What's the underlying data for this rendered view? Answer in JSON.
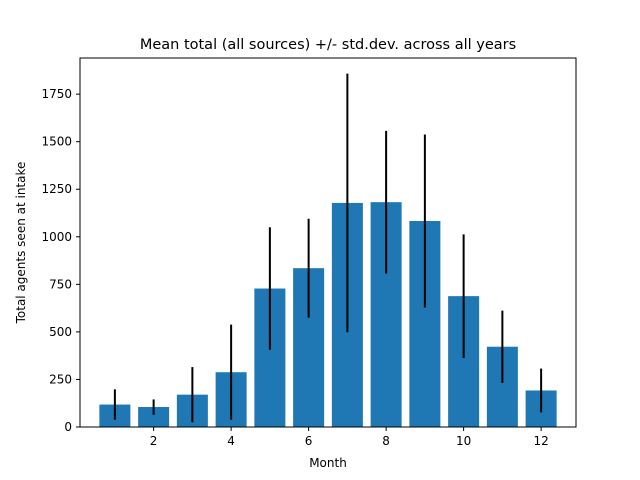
{
  "chart_data": {
    "type": "bar",
    "title": "Mean total (all sources) +/- std.dev. across all years",
    "xlabel": "Month",
    "ylabel": "Total agents seen at intake",
    "x": [
      1,
      2,
      3,
      4,
      5,
      6,
      7,
      8,
      9,
      10,
      11,
      12
    ],
    "values": [
      118,
      105,
      170,
      288,
      728,
      835,
      1178,
      1182,
      1083,
      688,
      422,
      192
    ],
    "error": [
      80,
      40,
      145,
      250,
      322,
      260,
      680,
      375,
      455,
      325,
      190,
      115
    ],
    "xlim": [
      0.1,
      12.9
    ],
    "ylim": [
      0,
      1940
    ],
    "xticks": [
      2,
      4,
      6,
      8,
      10,
      12
    ],
    "yticks": [
      0,
      250,
      500,
      750,
      1000,
      1250,
      1500,
      1750
    ],
    "bar_width": 0.8,
    "grid": false,
    "colors": {
      "bar": "#1f77b4",
      "errorbar": "#000000",
      "axis": "#000000"
    }
  }
}
